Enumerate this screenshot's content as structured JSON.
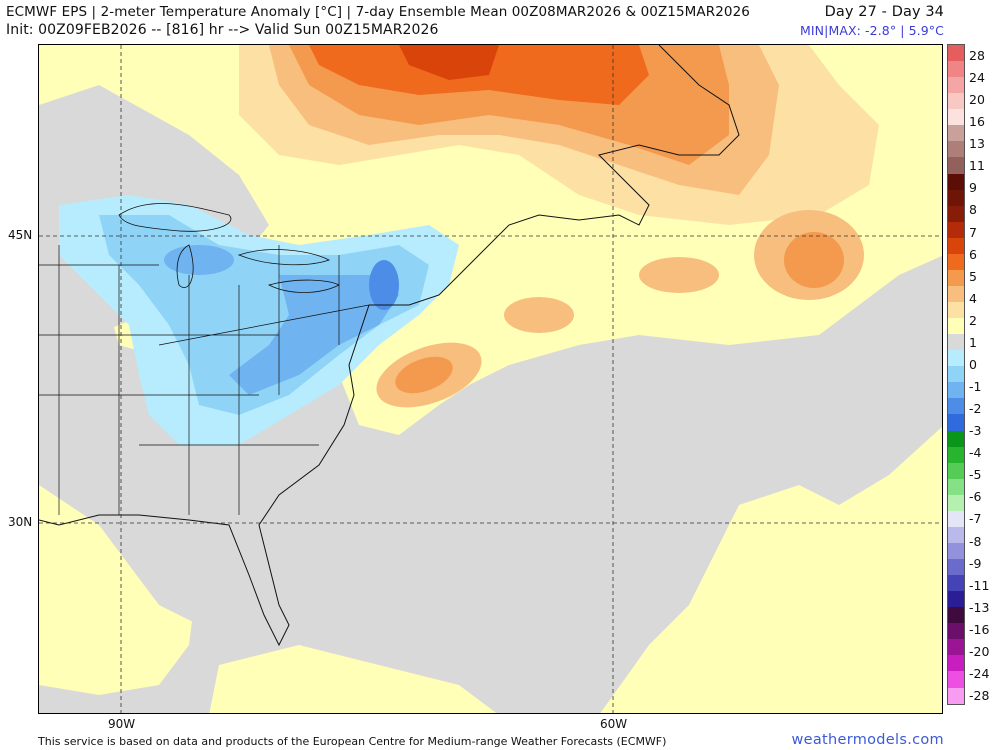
{
  "header": {
    "title": "ECMWF EPS | 2-meter Temperature Anomaly [°C] | 7-day Ensemble Mean 00Z08MAR2026 & 00Z15MAR2026",
    "init": "Init: 00Z09FEB2026 -- [816] hr --> Valid Sun 00Z15MAR2026",
    "day_range": "Day 27 - Day 34",
    "minmax": "MIN|MAX: -2.8° | 5.9°C"
  },
  "map": {
    "lat_labels": [
      "45N",
      "30N"
    ],
    "lon_labels": [
      "90W",
      "60W"
    ]
  },
  "colorbar": {
    "labels": [
      "28",
      "24",
      "20",
      "16",
      "13",
      "11",
      "9",
      "8",
      "7",
      "6",
      "5",
      "4",
      "2",
      "1",
      "0",
      "-1",
      "-2",
      "-3",
      "-4",
      "-5",
      "-6",
      "-7",
      "-8",
      "-9",
      "-11",
      "-13",
      "-16",
      "-20",
      "-24",
      "-28"
    ],
    "colors": [
      "#e65d5d",
      "#ef8585",
      "#f4a5a5",
      "#f8c9c4",
      "#fbe2de",
      "#c9a09a",
      "#ae7e78",
      "#93615b",
      "#5a0e05",
      "#6e1507",
      "#881d07",
      "#b32b08",
      "#d8440a",
      "#ef6a1c",
      "#f49a4e",
      "#f8be7e",
      "#fde1a4",
      "#ffffb8",
      "#d9d9d9",
      "#b6ecfd",
      "#8fd4f7",
      "#6fb4f0",
      "#4d8de8",
      "#2f6bdc",
      "#09961a",
      "#28b42e",
      "#55cc55",
      "#86e086",
      "#b5f0b0",
      "#e5e5f8",
      "#b9b9ec",
      "#9191dc",
      "#6b6bcb",
      "#4444b6",
      "#2a1d95",
      "#3f0a3e",
      "#6c0e6b",
      "#9a1495",
      "#c81ec0",
      "#ec4fe2",
      "#f79cf0"
    ]
  },
  "footer": {
    "credit": "This service is based on data and products of the European Centre for Medium-range Weather Forecasts (ECMWF)",
    "site": "weathermodels.com"
  }
}
